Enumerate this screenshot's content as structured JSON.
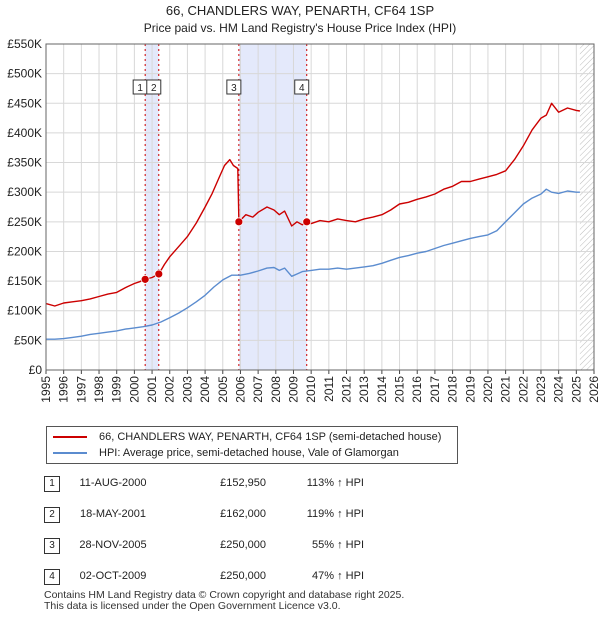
{
  "chart_data": {
    "type": "line",
    "title": "66, CHANDLERS WAY, PENARTH, CF64 1SP",
    "subtitle": "Price paid vs. HM Land Registry's House Price Index (HPI)",
    "xlabel": "",
    "ylabel": "",
    "xlim": [
      1995,
      2026
    ],
    "ylim": [
      0,
      550000
    ],
    "x_ticks": [
      1995,
      1996,
      1997,
      1998,
      1999,
      2000,
      2001,
      2002,
      2003,
      2004,
      2005,
      2006,
      2007,
      2008,
      2009,
      2010,
      2011,
      2012,
      2013,
      2014,
      2015,
      2016,
      2017,
      2018,
      2019,
      2020,
      2021,
      2022,
      2023,
      2024,
      2025,
      2026
    ],
    "y_ticks": [
      {
        "value": 0,
        "label": "£0"
      },
      {
        "value": 50000,
        "label": "£50K"
      },
      {
        "value": 100000,
        "label": "£100K"
      },
      {
        "value": 150000,
        "label": "£150K"
      },
      {
        "value": 200000,
        "label": "£200K"
      },
      {
        "value": 250000,
        "label": "£250K"
      },
      {
        "value": 300000,
        "label": "£300K"
      },
      {
        "value": 350000,
        "label": "£350K"
      },
      {
        "value": 400000,
        "label": "£400K"
      },
      {
        "value": 450000,
        "label": "£450K"
      },
      {
        "value": 500000,
        "label": "£500K"
      },
      {
        "value": 550000,
        "label": "£550K"
      }
    ],
    "grid": true,
    "shaded_spans": [
      {
        "from": 2000.61,
        "to": 2001.38,
        "color": "#e4e9fb"
      },
      {
        "from": 2005.91,
        "to": 2009.75,
        "color": "#e4e9fb"
      }
    ],
    "future_hatch_from": 2025.2,
    "series": [
      {
        "name": "66, CHANDLERS WAY, PENARTH, CF64 1SP (semi-detached house)",
        "color": "#cc0000",
        "x": [
          1995.0,
          1995.5,
          1996.0,
          1996.5,
          1997.0,
          1997.5,
          1998.0,
          1998.5,
          1999.0,
          1999.5,
          2000.0,
          2000.3,
          2000.61,
          2001.0,
          2001.38,
          2001.7,
          2002.0,
          2002.5,
          2003.0,
          2003.5,
          2004.0,
          2004.4,
          2004.8,
          2005.1,
          2005.4,
          2005.6,
          2005.85,
          2005.91,
          2006.3,
          2006.7,
          2007.0,
          2007.5,
          2007.9,
          2008.2,
          2008.5,
          2008.9,
          2009.2,
          2009.5,
          2009.75,
          2010.0,
          2010.5,
          2011.0,
          2011.5,
          2012.0,
          2012.5,
          2013.0,
          2013.5,
          2014.0,
          2014.5,
          2015.0,
          2015.5,
          2016.0,
          2016.5,
          2017.0,
          2017.5,
          2018.0,
          2018.5,
          2019.0,
          2019.5,
          2020.0,
          2020.5,
          2021.0,
          2021.5,
          2022.0,
          2022.5,
          2023.0,
          2023.3,
          2023.6,
          2024.0,
          2024.5,
          2025.0,
          2025.2
        ],
        "values": [
          112000,
          108000,
          113000,
          115000,
          117000,
          120000,
          124000,
          128000,
          131000,
          139000,
          146000,
          149000,
          152950,
          156000,
          162000,
          178000,
          191000,
          208000,
          225000,
          248000,
          275000,
          298000,
          325000,
          345000,
          355000,
          345000,
          340000,
          250000,
          262000,
          258000,
          266000,
          275000,
          270000,
          262000,
          268000,
          243000,
          250000,
          245000,
          250000,
          247000,
          252000,
          250000,
          255000,
          252000,
          250000,
          255000,
          258000,
          262000,
          270000,
          280000,
          283000,
          288000,
          292000,
          297000,
          305000,
          310000,
          318000,
          318000,
          322000,
          326000,
          330000,
          336000,
          355000,
          378000,
          405000,
          425000,
          430000,
          450000,
          435000,
          442000,
          438000,
          437000
        ]
      },
      {
        "name": "HPI: Average price, semi-detached house, Vale of Glamorgan",
        "color": "#5b8ccf",
        "x": [
          1995.0,
          1995.5,
          1996.0,
          1996.5,
          1997.0,
          1997.5,
          1998.0,
          1998.5,
          1999.0,
          1999.5,
          2000.0,
          2000.5,
          2001.0,
          2001.5,
          2002.0,
          2002.5,
          2003.0,
          2003.5,
          2004.0,
          2004.5,
          2005.0,
          2005.5,
          2006.0,
          2006.5,
          2007.0,
          2007.5,
          2007.9,
          2008.2,
          2008.5,
          2008.9,
          2009.2,
          2009.5,
          2010.0,
          2010.5,
          2011.0,
          2011.5,
          2012.0,
          2012.5,
          2013.0,
          2013.5,
          2014.0,
          2014.5,
          2015.0,
          2015.5,
          2016.0,
          2016.5,
          2017.0,
          2017.5,
          2018.0,
          2018.5,
          2019.0,
          2019.5,
          2020.0,
          2020.5,
          2021.0,
          2021.5,
          2022.0,
          2022.5,
          2023.0,
          2023.3,
          2023.6,
          2024.0,
          2024.5,
          2025.0,
          2025.2
        ],
        "values": [
          52000,
          52000,
          53000,
          55000,
          57000,
          60000,
          62000,
          64000,
          66000,
          69000,
          71000,
          73000,
          76000,
          81000,
          88000,
          96000,
          105000,
          115000,
          126000,
          140000,
          152000,
          160000,
          160000,
          163000,
          167000,
          172000,
          173000,
          168000,
          172000,
          158000,
          162000,
          166000,
          168000,
          170000,
          170000,
          172000,
          170000,
          172000,
          174000,
          176000,
          180000,
          185000,
          190000,
          193000,
          197000,
          200000,
          205000,
          210000,
          214000,
          218000,
          222000,
          225000,
          228000,
          235000,
          250000,
          265000,
          280000,
          290000,
          297000,
          305000,
          300000,
          298000,
          302000,
          300000,
          300000
        ]
      }
    ],
    "markers": [
      {
        "label": "1",
        "x": 2000.61,
        "y": 152950
      },
      {
        "label": "2",
        "x": 2001.38,
        "y": 162000
      },
      {
        "label": "3",
        "x": 2005.91,
        "y": 250000
      },
      {
        "label": "4",
        "x": 2009.75,
        "y": 250000
      }
    ]
  },
  "legend": [
    {
      "label": "66, CHANDLERS WAY, PENARTH, CF64 1SP (semi-detached house)",
      "color": "#cc0000"
    },
    {
      "label": "HPI: Average price, semi-detached house, Vale of Glamorgan",
      "color": "#5b8ccf"
    }
  ],
  "transactions": [
    {
      "num": "1",
      "date": "11-AUG-2000",
      "price": "£152,950",
      "hpi": "113% ↑ HPI"
    },
    {
      "num": "2",
      "date": "18-MAY-2001",
      "price": "£162,000",
      "hpi": "119% ↑ HPI"
    },
    {
      "num": "3",
      "date": "28-NOV-2005",
      "price": "£250,000",
      "hpi": "55% ↑ HPI"
    },
    {
      "num": "4",
      "date": "02-OCT-2009",
      "price": "£250,000",
      "hpi": "47% ↑ HPI"
    }
  ],
  "footer": {
    "line1": "Contains HM Land Registry data © Crown copyright and database right 2025.",
    "line2": "This data is licensed under the Open Government Licence v3.0."
  }
}
